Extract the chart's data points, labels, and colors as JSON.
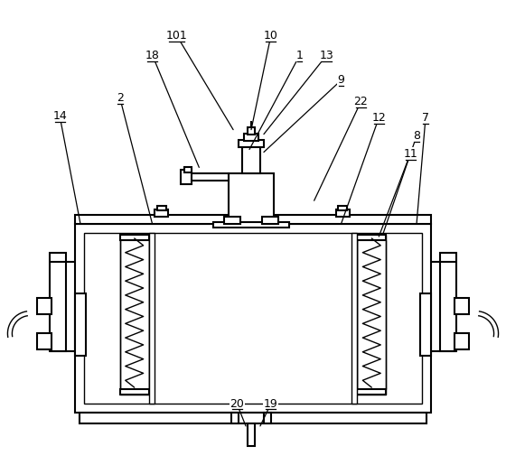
{
  "background_color": "#ffffff",
  "line_color": "#000000",
  "lw": 1.5,
  "lw_thin": 1.0,
  "figsize": [
    5.6,
    5.25
  ],
  "dpi": 100,
  "annotations": [
    [
      "101",
      195,
      38,
      258,
      143
    ],
    [
      "18",
      168,
      60,
      220,
      185
    ],
    [
      "10",
      300,
      38,
      278,
      143
    ],
    [
      "1",
      332,
      60,
      276,
      165
    ],
    [
      "13",
      362,
      60,
      292,
      148
    ],
    [
      "9",
      378,
      88,
      292,
      168
    ],
    [
      "22",
      400,
      112,
      348,
      222
    ],
    [
      "12",
      420,
      130,
      378,
      248
    ],
    [
      "2",
      132,
      108,
      168,
      248
    ],
    [
      "14",
      65,
      128,
      88,
      248
    ],
    [
      "7",
      472,
      130,
      462,
      248
    ],
    [
      "8",
      462,
      150,
      425,
      258
    ],
    [
      "11",
      455,
      170,
      420,
      262
    ],
    [
      "20",
      262,
      448,
      272,
      473
    ],
    [
      "19",
      300,
      448,
      288,
      473
    ]
  ]
}
